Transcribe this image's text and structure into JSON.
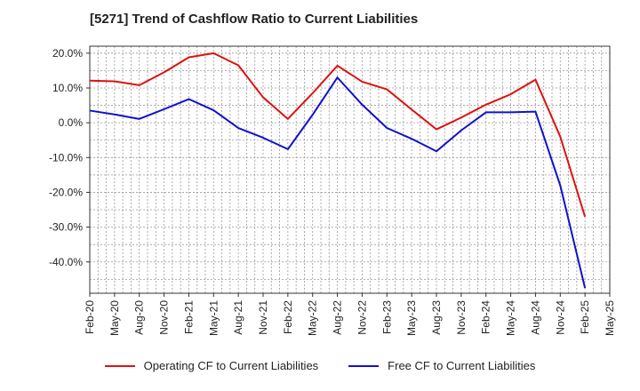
{
  "chart_data": {
    "type": "line",
    "title": "[5271]  Trend of Cashflow Ratio to Current Liabilities",
    "xlabel": "",
    "ylabel": "",
    "categories": [
      "Feb-20",
      "May-20",
      "Aug-20",
      "Nov-20",
      "Feb-21",
      "May-21",
      "Aug-21",
      "Nov-21",
      "Feb-22",
      "May-22",
      "Aug-22",
      "Nov-22",
      "Feb-23",
      "May-23",
      "Aug-23",
      "Nov-23",
      "Feb-24",
      "May-24",
      "Aug-24",
      "Nov-24",
      "Feb-25",
      "May-25"
    ],
    "yticks": [
      "20.0%",
      "10.0%",
      "0.0%",
      "-10.0%",
      "-20.0%",
      "-30.0%",
      "-40.0%"
    ],
    "ytick_values": [
      20,
      10,
      0,
      -10,
      -20,
      -30,
      -40
    ],
    "ylim": [
      -49,
      22
    ],
    "grid": true,
    "legend_position": "bottom",
    "series": [
      {
        "name": "Operating CF to Current Liabilities",
        "color": "#dd1111",
        "x": [
          "Feb-20",
          "May-20",
          "Aug-20",
          "Nov-20",
          "Feb-21",
          "May-21",
          "Aug-21",
          "Nov-21",
          "Feb-22",
          "May-22",
          "Aug-22",
          "Nov-22",
          "Feb-23",
          "May-23",
          "Aug-23",
          "Nov-23",
          "Feb-24",
          "May-24",
          "Aug-24",
          "Nov-24",
          "Feb-25"
        ],
        "values": [
          12.1,
          11.9,
          10.8,
          14.5,
          18.8,
          20.0,
          16.5,
          7.3,
          1.1,
          8.5,
          16.4,
          11.8,
          9.6,
          3.8,
          -1.9,
          1.5,
          5.2,
          8.2,
          12.4,
          -4.0,
          -27.0
        ]
      },
      {
        "name": "Free CF to Current Liabilities",
        "color": "#1111cc",
        "x": [
          "Feb-20",
          "May-20",
          "Aug-20",
          "Nov-20",
          "Feb-21",
          "May-21",
          "Aug-21",
          "Nov-21",
          "Feb-22",
          "May-22",
          "Aug-22",
          "Nov-22",
          "Feb-23",
          "May-23",
          "Aug-23",
          "Nov-23",
          "Feb-24",
          "May-24",
          "Aug-24",
          "Nov-24",
          "Feb-25"
        ],
        "values": [
          3.5,
          2.4,
          1.1,
          3.9,
          6.8,
          3.6,
          -1.5,
          -4.3,
          -7.6,
          2.3,
          13.0,
          5.2,
          -1.5,
          -4.6,
          -8.2,
          -2.2,
          3.0,
          3.0,
          3.2,
          -18.0,
          -47.5
        ]
      }
    ]
  }
}
